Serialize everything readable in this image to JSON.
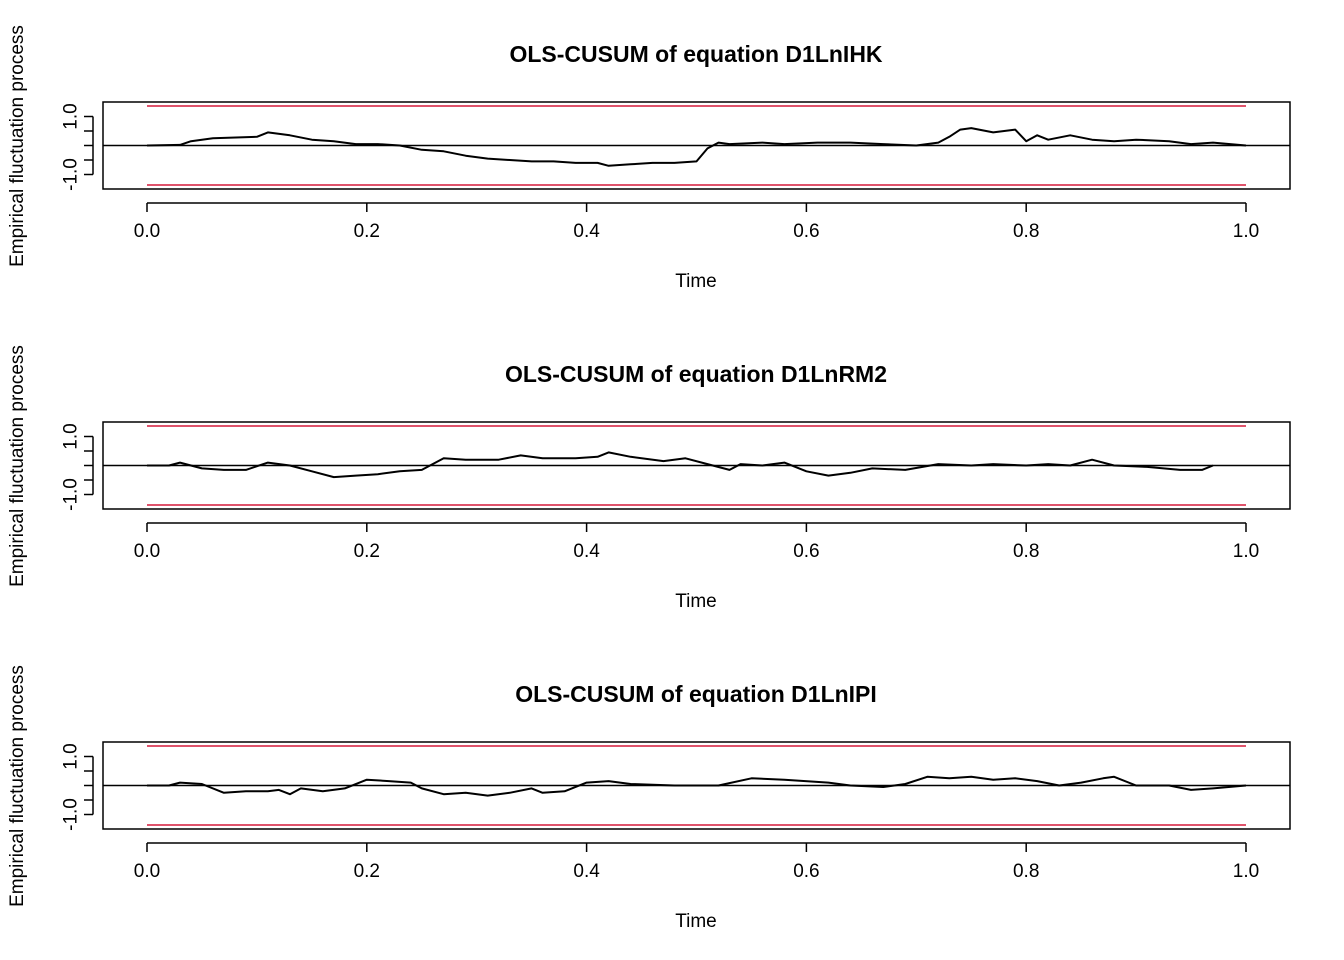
{
  "chart_data": [
    {
      "type": "line",
      "title": "OLS-CUSUM of equation D1LnIHK",
      "xlabel": "Time",
      "ylabel": "Empirical fluctuation process",
      "xlim": [
        0.0,
        1.0
      ],
      "ylim": [
        -1.5,
        1.5
      ],
      "xticks": [
        "0.0",
        "0.2",
        "0.4",
        "0.6",
        "0.8",
        "1.0"
      ],
      "yticks": [
        "-1.0",
        "",
        "1.0"
      ],
      "boundary": 1.36,
      "boundary_color": "#DF536B",
      "line_color": "#000000",
      "x": [
        0.0,
        0.03,
        0.04,
        0.06,
        0.1,
        0.11,
        0.13,
        0.15,
        0.17,
        0.19,
        0.21,
        0.23,
        0.25,
        0.27,
        0.29,
        0.31,
        0.33,
        0.35,
        0.37,
        0.39,
        0.41,
        0.42,
        0.44,
        0.46,
        0.48,
        0.5,
        0.51,
        0.52,
        0.53,
        0.56,
        0.58,
        0.61,
        0.64,
        0.67,
        0.7,
        0.72,
        0.73,
        0.74,
        0.75,
        0.77,
        0.79,
        0.8,
        0.81,
        0.82,
        0.84,
        0.86,
        0.88,
        0.9,
        0.93,
        0.95,
        0.97,
        1.0
      ],
      "y": [
        0.0,
        0.02,
        0.15,
        0.25,
        0.3,
        0.45,
        0.35,
        0.2,
        0.15,
        0.05,
        0.05,
        0.0,
        -0.15,
        -0.2,
        -0.35,
        -0.45,
        -0.5,
        -0.55,
        -0.55,
        -0.6,
        -0.6,
        -0.7,
        -0.65,
        -0.6,
        -0.6,
        -0.55,
        -0.1,
        0.1,
        0.05,
        0.1,
        0.05,
        0.1,
        0.1,
        0.05,
        0.0,
        0.1,
        0.3,
        0.55,
        0.6,
        0.45,
        0.55,
        0.15,
        0.35,
        0.2,
        0.35,
        0.2,
        0.15,
        0.2,
        0.15,
        0.05,
        0.1,
        0.0
      ]
    },
    {
      "type": "line",
      "title": "OLS-CUSUM of equation D1LnRM2",
      "xlabel": "Time",
      "ylabel": "Empirical fluctuation process",
      "xlim": [
        0.0,
        1.0
      ],
      "ylim": [
        -1.5,
        1.5
      ],
      "xticks": [
        "0.0",
        "0.2",
        "0.4",
        "0.6",
        "0.8",
        "1.0"
      ],
      "yticks": [
        "-1.0",
        "",
        "1.0"
      ],
      "boundary": 1.36,
      "boundary_color": "#DF536B",
      "line_color": "#000000",
      "x": [
        0.0,
        0.02,
        0.03,
        0.05,
        0.07,
        0.09,
        0.11,
        0.13,
        0.15,
        0.17,
        0.19,
        0.21,
        0.23,
        0.25,
        0.27,
        0.29,
        0.32,
        0.34,
        0.36,
        0.39,
        0.41,
        0.42,
        0.44,
        0.47,
        0.49,
        0.51,
        0.53,
        0.54,
        0.56,
        0.58,
        0.6,
        0.62,
        0.64,
        0.66,
        0.69,
        0.72,
        0.75,
        0.77,
        0.8,
        0.82,
        0.84,
        0.86,
        0.88,
        0.91,
        0.94,
        0.96,
        0.97
      ],
      "y": [
        0.0,
        0.0,
        0.1,
        -0.1,
        -0.15,
        -0.15,
        0.1,
        0.0,
        -0.2,
        -0.4,
        -0.35,
        -0.3,
        -0.2,
        -0.15,
        0.25,
        0.2,
        0.2,
        0.35,
        0.25,
        0.25,
        0.3,
        0.45,
        0.3,
        0.15,
        0.25,
        0.05,
        -0.15,
        0.05,
        0.0,
        0.1,
        -0.2,
        -0.35,
        -0.25,
        -0.1,
        -0.15,
        0.05,
        0.0,
        0.05,
        0.0,
        0.05,
        0.0,
        0.2,
        0.0,
        -0.05,
        -0.15,
        -0.15,
        0.0
      ]
    },
    {
      "type": "line",
      "title": "OLS-CUSUM of equation D1LnIPI",
      "xlabel": "Time",
      "ylabel": "Empirical fluctuation process",
      "xlim": [
        0.0,
        1.0
      ],
      "ylim": [
        -1.5,
        1.5
      ],
      "xticks": [
        "0.0",
        "0.2",
        "0.4",
        "0.6",
        "0.8",
        "1.0"
      ],
      "yticks": [
        "-1.0",
        "",
        "1.0"
      ],
      "boundary": 1.36,
      "boundary_color": "#DF536B",
      "line_color": "#000000",
      "x": [
        0.0,
        0.02,
        0.03,
        0.05,
        0.07,
        0.09,
        0.11,
        0.12,
        0.13,
        0.14,
        0.16,
        0.18,
        0.2,
        0.22,
        0.24,
        0.25,
        0.27,
        0.29,
        0.31,
        0.33,
        0.35,
        0.36,
        0.38,
        0.4,
        0.42,
        0.44,
        0.48,
        0.52,
        0.55,
        0.58,
        0.62,
        0.64,
        0.67,
        0.69,
        0.71,
        0.73,
        0.75,
        0.77,
        0.79,
        0.81,
        0.83,
        0.85,
        0.87,
        0.88,
        0.9,
        0.93,
        0.95,
        0.97,
        1.0
      ],
      "y": [
        0.0,
        0.0,
        0.1,
        0.05,
        -0.25,
        -0.2,
        -0.2,
        -0.15,
        -0.3,
        -0.1,
        -0.2,
        -0.1,
        0.2,
        0.15,
        0.1,
        -0.1,
        -0.3,
        -0.25,
        -0.35,
        -0.25,
        -0.1,
        -0.25,
        -0.2,
        0.1,
        0.15,
        0.05,
        0.0,
        0.0,
        0.25,
        0.2,
        0.1,
        0.0,
        -0.05,
        0.05,
        0.3,
        0.25,
        0.3,
        0.2,
        0.25,
        0.15,
        0.0,
        0.1,
        0.25,
        0.3,
        0.0,
        0.0,
        -0.15,
        -0.1,
        0.0
      ]
    }
  ]
}
